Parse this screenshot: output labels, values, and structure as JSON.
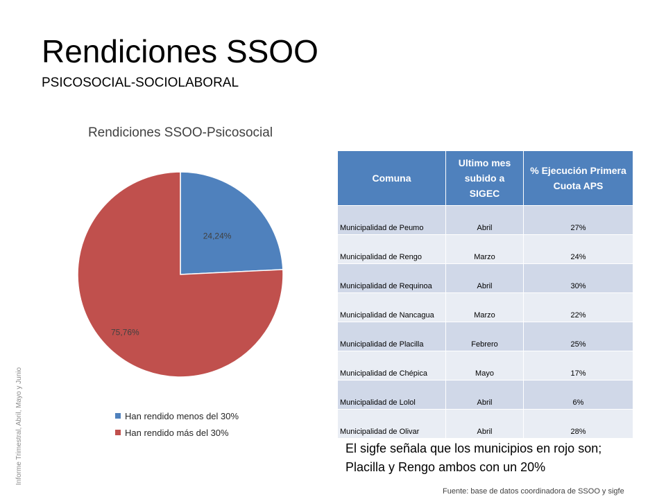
{
  "slide": {
    "title": "Rendiciones SSOO",
    "subtitle": "PSICOSOCIAL-SOCIOLABORAL",
    "side_note": "Informe Trimestral, Abril, Mayo y Junio",
    "note": "El sigfe señala que los municipios en rojo son; Placilla y Rengo ambos con un 20%",
    "source": "Fuente: base de datos coordinadora de SSOO y sigfe"
  },
  "chart_data": {
    "type": "pie",
    "title": "Rendiciones SSOO-Psicosocial",
    "legend_position": "bottom",
    "slices": [
      {
        "label": "Han rendido menos del 30%",
        "value": 24.24,
        "display": "24,24%",
        "color": "#4f81bd"
      },
      {
        "label": "Han rendido más del 30%",
        "value": 75.76,
        "display": "75,76%",
        "color": "#c0504d"
      }
    ]
  },
  "table": {
    "headers": [
      "Comuna",
      "Ultimo mes subido a SIGEC",
      "% Ejecución Primera Cuota APS"
    ],
    "rows": [
      [
        "Municipalidad de Peumo",
        "Abril",
        "27%"
      ],
      [
        "Municipalidad de Rengo",
        "Marzo",
        "24%"
      ],
      [
        "Municipalidad de Requinoa",
        "Abril",
        "30%"
      ],
      [
        " Municipalidad de Nancagua",
        "Marzo",
        "22%"
      ],
      [
        "Municipalidad de Placilla",
        "Febrero",
        "25%"
      ],
      [
        "Municipalidad de Chépica",
        "Mayo",
        "17%"
      ],
      [
        "Municipalidad de Lolol",
        "Abril",
        "6%"
      ],
      [
        "Municipalidad de Olivar",
        "Abril",
        "28%"
      ]
    ]
  }
}
